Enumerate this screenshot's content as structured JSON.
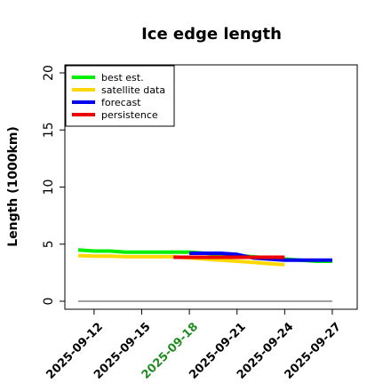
{
  "chart_data": {
    "type": "line",
    "title": "Ice edge length",
    "xlabel": "",
    "ylabel": "Length (1000km)",
    "ylim": [
      0,
      20
    ],
    "yticks": [
      "0",
      "5",
      "10",
      "15",
      "20"
    ],
    "xlim": [
      "2025-09-11",
      "2025-09-28"
    ],
    "xticks": [
      "2025-09-12",
      "2025-09-15",
      "2025-09-18",
      "2025-09-21",
      "2025-09-24",
      "2025-09-27"
    ],
    "highlight_tick": "2025-09-18",
    "highlight_color": "#228B22",
    "legend_position": "top-left",
    "grid": false,
    "series": [
      {
        "name": "best est.",
        "color": "#00ee00",
        "x": [
          "2025-09-11",
          "2025-09-12",
          "2025-09-13",
          "2025-09-14",
          "2025-09-15",
          "2025-09-16",
          "2025-09-17",
          "2025-09-18",
          "2025-09-19",
          "2025-09-20",
          "2025-09-21",
          "2025-09-22",
          "2025-09-23",
          "2025-09-24",
          "2025-09-25",
          "2025-09-26",
          "2025-09-27"
        ],
        "y": [
          4.5,
          4.4,
          4.4,
          4.3,
          4.3,
          4.3,
          4.3,
          4.3,
          4.2,
          4.1,
          4.0,
          3.9,
          3.8,
          3.7,
          3.6,
          3.5,
          3.5
        ]
      },
      {
        "name": "satellite data",
        "color": "#ffd700",
        "x": [
          "2025-09-11",
          "2025-09-12",
          "2025-09-13",
          "2025-09-14",
          "2025-09-15",
          "2025-09-16",
          "2025-09-17",
          "2025-09-18",
          "2025-09-19",
          "2025-09-20",
          "2025-09-21",
          "2025-09-22",
          "2025-09-23",
          "2025-09-24"
        ],
        "y": [
          4.0,
          3.95,
          3.95,
          3.9,
          3.9,
          3.9,
          3.9,
          3.8,
          3.7,
          3.6,
          3.5,
          3.4,
          3.3,
          3.2
        ]
      },
      {
        "name": "forecast",
        "color": "#0000ee",
        "x": [
          "2025-09-18",
          "2025-09-19",
          "2025-09-20",
          "2025-09-21",
          "2025-09-22",
          "2025-09-23",
          "2025-09-24",
          "2025-09-25",
          "2025-09-26",
          "2025-09-27"
        ],
        "y": [
          4.2,
          4.2,
          4.2,
          4.1,
          3.8,
          3.7,
          3.6,
          3.6,
          3.6,
          3.6
        ]
      },
      {
        "name": "persistence",
        "color": "#ee0000",
        "x": [
          "2025-09-17",
          "2025-09-18",
          "2025-09-19",
          "2025-09-20",
          "2025-09-21",
          "2025-09-22",
          "2025-09-23",
          "2025-09-24"
        ],
        "y": [
          3.85,
          3.85,
          3.85,
          3.85,
          3.85,
          3.85,
          3.85,
          3.85
        ]
      },
      {
        "name": "",
        "color": "#808080",
        "x": [
          "2025-09-11",
          "2025-09-27"
        ],
        "y": [
          0,
          0
        ]
      }
    ]
  }
}
